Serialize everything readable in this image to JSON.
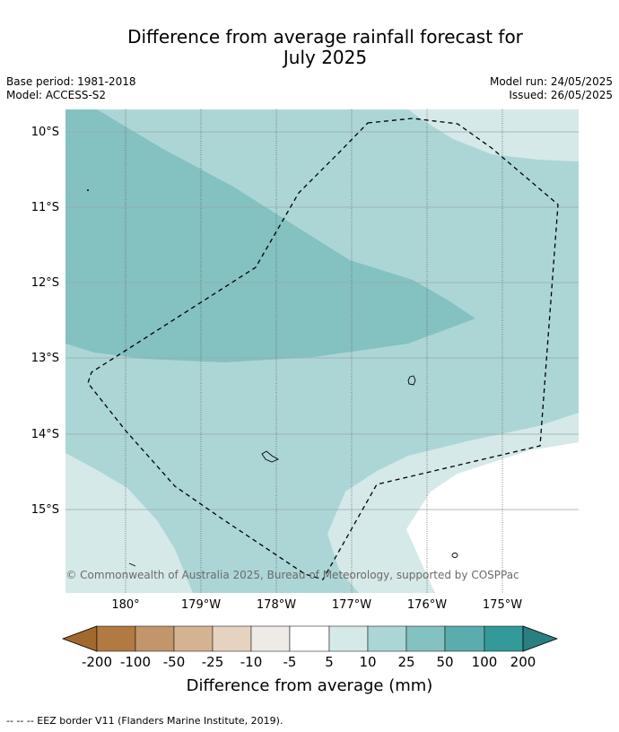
{
  "title_line1": "Difference from average rainfall forecast for",
  "title_line2": "July 2025",
  "meta": {
    "base_period": "Base period: 1981-2018",
    "model": "Model: ACCESS-S2",
    "model_run": "Model run: 24/05/2025",
    "issued": "Issued: 26/05/2025"
  },
  "map": {
    "lat_labels": [
      "10°S",
      "11°S",
      "12°S",
      "13°S",
      "14°S",
      "15°S"
    ],
    "lon_labels": [
      "180°",
      "179°W",
      "178°W",
      "177°W",
      "176°W",
      "175°W"
    ],
    "copyright": "© Commonwealth of Australia 2025, Bureau of Meteorology, supported by COSPPac"
  },
  "colorbar": {
    "ticks": [
      "-200",
      "-100",
      "-50",
      "-25",
      "-10",
      "-5",
      "5",
      "10",
      "25",
      "50",
      "100",
      "200"
    ],
    "colors": [
      "#a2692f",
      "#b17a42",
      "#c2956a",
      "#d4b393",
      "#e5d2c1",
      "#eeeae6",
      "#ffffff",
      "#d5e9e8",
      "#acd6d6",
      "#84c1c1",
      "#5bacac",
      "#339a99",
      "#2a7f80"
    ],
    "label": "Difference from average (mm)"
  },
  "footnote": "--  --  -- EEZ border V11 (Flanders Marine Institute, 2019)."
}
